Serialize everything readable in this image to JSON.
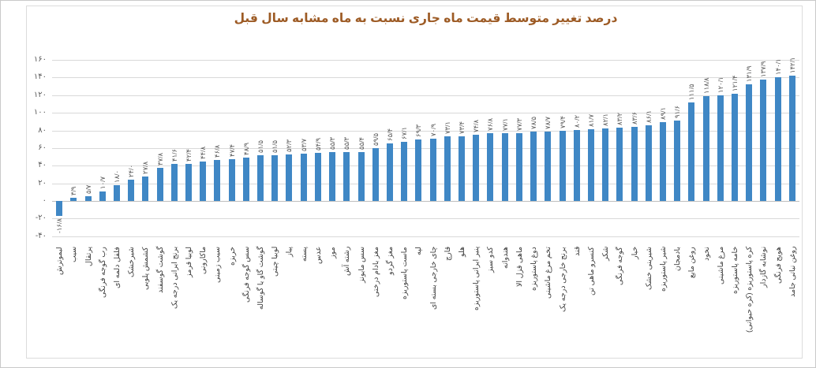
{
  "chart": {
    "title_color": "#9d5b25",
    "bar_color": "#3f87c5",
    "grid_color": "#d9d9d9",
    "text_color": "#595959"
  },
  "chart_data": {
    "type": "bar",
    "title": "درصد تغییر متوسط قیمت ماه جاری نسبت به ماه مشابه سال قبل",
    "xlabel": "",
    "ylabel": "",
    "ylim": [
      -40,
      160
    ],
    "y_tick_step": 20,
    "grid": true,
    "legend": false,
    "y_ticks": [
      {
        "value": 160,
        "label": "۱۶۰"
      },
      {
        "value": 140,
        "label": "۱۴۰"
      },
      {
        "value": 120,
        "label": "۱۲۰"
      },
      {
        "value": 100,
        "label": "۱۰۰"
      },
      {
        "value": 80,
        "label": "۸۰"
      },
      {
        "value": 60,
        "label": "۶۰"
      },
      {
        "value": 40,
        "label": "۴۰"
      },
      {
        "value": 20,
        "label": "۲۰"
      },
      {
        "value": 0,
        "label": "۰"
      },
      {
        "value": -20,
        "label": "-۲۰"
      },
      {
        "value": -40,
        "label": "-۴۰"
      }
    ],
    "categories": [
      "لیموترش",
      "سیب",
      "پرتقال",
      "رب گوجه فرنگی",
      "فلفل دلمه ای",
      "شیرخشک",
      "کشمش پلویی",
      "گوشت گوسفند",
      "برنج ایرانی درجه یک",
      "لوبیا قرمز",
      "ماکارونی",
      "سیب زمینی",
      "خربزه",
      "سس گوجه فرنگی",
      "گوشت گاو یا گوساله",
      "لوبیا چیتی",
      "پیاز",
      "پسته",
      "عدس",
      "موز",
      "رشته آش",
      "سس مایونز",
      "مغز بادام درختی",
      "مغز گردو",
      "ماست پاستوریزه",
      "لپه",
      "چای خارجی بسته ای",
      "قارچ",
      "هلو",
      "پنیر ایرانی پاستوریزه",
      "کدو سبز",
      "هندوانه",
      "ماهی قزل الا",
      "دوغ پاستوریزه",
      "تخم مرغ ماشینی",
      "برنج خارجی درجه یک",
      "قند",
      "کنسرو ماهی تن",
      "شکر",
      "گوجه فرنگی",
      "خیار",
      "شیرینی خشک",
      "شیر پاستوریزه",
      "بادمجان",
      "روغن مایع",
      "نخود",
      "مرغ ماشینی",
      "خامه پاستوریزه",
      "کره پاستوریزه (کره حیوانی)",
      "نوشابه گازدار",
      "هویج فرنگی",
      "روغن نباتی جامد"
    ],
    "values": [
      -16.8,
      3.9,
      5.7,
      10.7,
      18.0,
      24.0,
      27.8,
      37.8,
      41.6,
      42.4,
      44.8,
      46.8,
      47.4,
      48.9,
      51.5,
      51.5,
      52.3,
      53.7,
      54.9,
      55.3,
      55.3,
      55.4,
      59.5,
      65.4,
      67.1,
      69.3,
      70.9,
      73.1,
      73.4,
      74.8,
      76.8,
      77.1,
      77.3,
      78.5,
      78.7,
      79.4,
      80.2,
      81.7,
      82.1,
      83.2,
      83.6,
      86.1,
      89.1,
      91.6,
      111.5,
      118.8,
      120.1,
      121.4,
      131.9,
      137.9,
      140.1,
      142.1
    ],
    "value_labels": [
      "-۱۶/۸",
      "۳/۹",
      "۵/۷",
      "۱۰/۷",
      "۱۸/۰",
      "۲۴/۰",
      "۲۷/۸",
      "۳۷/۸",
      "۴۱/۶",
      "۴۲/۴",
      "۴۴/۸",
      "۴۶/۸",
      "۴۷/۴",
      "۴۸/۹",
      "۵۱/۵",
      "۵۱/۵",
      "۵۲/۳",
      "۵۳/۷",
      "۵۴/۹",
      "۵۵/۳",
      "۵۵/۳",
      "۵۵/۴",
      "۵۹/۵",
      "۶۵/۴",
      "۶۷/۱",
      "۶۹/۳",
      "۷۰/۹",
      "۷۳/۱",
      "۷۳/۴",
      "۷۴/۸",
      "۷۶/۸",
      "۷۷/۱",
      "۷۷/۳",
      "۷۸/۵",
      "۷۸/۷",
      "۷۹/۴",
      "۸۰/۲",
      "۸۱/۷",
      "۸۲/۱",
      "۸۳/۲",
      "۸۳/۶",
      "۸۶/۱",
      "۸۹/۱",
      "۹۱/۶",
      "۱۱۱/۵",
      "۱۱۸/۸",
      "۱۲۰/۱",
      "۱۲۱/۴",
      "۱۳۱/۹",
      "۱۳۷/۹",
      "۱۴۰/۱",
      "۱۴۲/۱"
    ]
  }
}
